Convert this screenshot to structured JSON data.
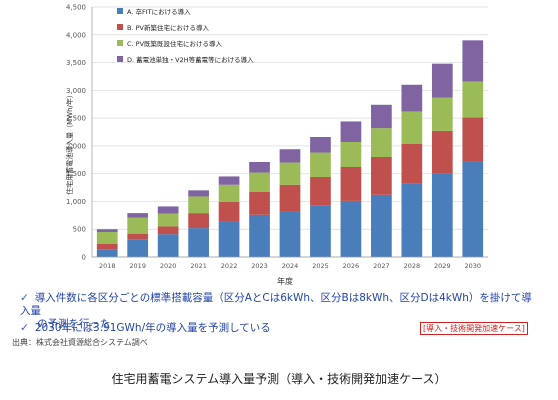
{
  "chart_data": {
    "type": "bar",
    "stacked": true,
    "categories": [
      "2018",
      "2019",
      "2020",
      "2021",
      "2022",
      "2023",
      "2024",
      "2025",
      "2026",
      "2027",
      "2028",
      "2029",
      "2030"
    ],
    "ylim": [
      0,
      4500
    ],
    "yticks": [
      "0",
      "500",
      "1,000",
      "1,500",
      "2,000",
      "2,500",
      "3,000",
      "3,500",
      "4,000",
      "4,500"
    ],
    "ylabel": "住宅用蓄電池導入量（MWh/年）",
    "xlabel": "年度",
    "grid": true,
    "legend_position": "top-left",
    "series": [
      {
        "name": "A. 卒FITにおける導入",
        "color": "#4a7ebb",
        "values": [
          140,
          320,
          410,
          520,
          640,
          760,
          820,
          930,
          1010,
          1120,
          1320,
          1510,
          1720
        ]
      },
      {
        "name": "B. PV新築住宅における導入",
        "color": "#c0504d",
        "values": [
          100,
          100,
          140,
          270,
          350,
          410,
          480,
          510,
          610,
          680,
          720,
          760,
          790
        ]
      },
      {
        "name": "C. PV既築既設住宅における導入",
        "color": "#9bbb59",
        "values": [
          210,
          290,
          230,
          300,
          310,
          350,
          400,
          440,
          450,
          520,
          580,
          600,
          650
        ]
      },
      {
        "name": "D. 蓄電池単独・V2H等蓄電等における導入",
        "color": "#8064a2",
        "values": [
          50,
          80,
          130,
          110,
          150,
          190,
          240,
          280,
          370,
          420,
          480,
          610,
          740
        ]
      }
    ]
  },
  "notes": {
    "line1a": "導入件数に各区分ごとの標準搭載容量（区分AとCは6kWh、区分Bは8kWh、区分Dは4kWh）を掛けて導入量",
    "line1b": "の予測を行った",
    "line2": "2030年には3.91GWh/年の導入量を予測している",
    "check": "✓"
  },
  "tag": "[導入・技術開発加速ケース]",
  "source": "出典：株式会社資源総合システム調べ",
  "caption": "住宅用蓄電システム導入量予測（導入・技術開発加速ケース）"
}
